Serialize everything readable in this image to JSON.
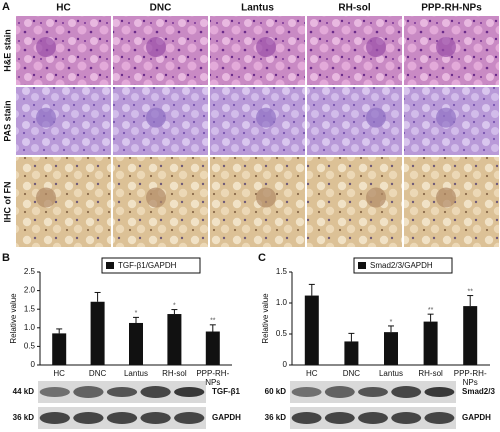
{
  "panel_a": {
    "label": "A",
    "columns": [
      "HC",
      "DNC",
      "Lantus",
      "RH-sol",
      "PPP-RH-NPs"
    ],
    "rows": [
      "H&E stain",
      "PAS stain",
      "IHC of FN"
    ]
  },
  "chart_data": [
    {
      "type": "bar",
      "panel": "B",
      "legend": "TGF-β1/GAPDH",
      "y_label": "Relative value",
      "color": "#111111",
      "categories": [
        "HC",
        "DNC",
        "Lantus",
        "RH-sol",
        "PPP-RH-NPs"
      ],
      "values": [
        0.85,
        1.7,
        1.13,
        1.37,
        0.9
      ],
      "errors": [
        0.12,
        0.25,
        0.15,
        0.12,
        0.18
      ],
      "significance": [
        null,
        null,
        "*",
        "*",
        "**"
      ],
      "ylim": [
        0,
        2.5
      ],
      "yticks": [
        0,
        0.5,
        {
          "value": 1,
          "label": "1.0"
        },
        1.5,
        {
          "value": 2,
          "label": "2.0"
        },
        2.5
      ],
      "blots": [
        {
          "size": "44 kD",
          "protein": "TGF-β1"
        },
        {
          "size": "36 kD",
          "protein": "GAPDH"
        }
      ]
    },
    {
      "type": "bar",
      "panel": "C",
      "legend": "Smad2/3/GAPDH",
      "y_label": "Relative value",
      "color": "#111111",
      "categories": [
        "HC",
        "DNC",
        "Lantus",
        "RH-sol",
        "PPP-RH-NPs"
      ],
      "values": [
        1.12,
        0.38,
        0.53,
        0.7,
        0.95
      ],
      "errors": [
        0.18,
        0.13,
        0.1,
        0.12,
        0.17
      ],
      "significance": [
        null,
        null,
        "*",
        "**",
        "**"
      ],
      "ylim": [
        0,
        1.5
      ],
      "yticks": [
        0,
        0.5,
        {
          "value": 1,
          "label": "1.0"
        },
        1.5
      ],
      "blots": [
        {
          "size": "60 kD",
          "protein": "Smad2/3"
        },
        {
          "size": "36 kD",
          "protein": "GAPDH"
        }
      ]
    }
  ]
}
